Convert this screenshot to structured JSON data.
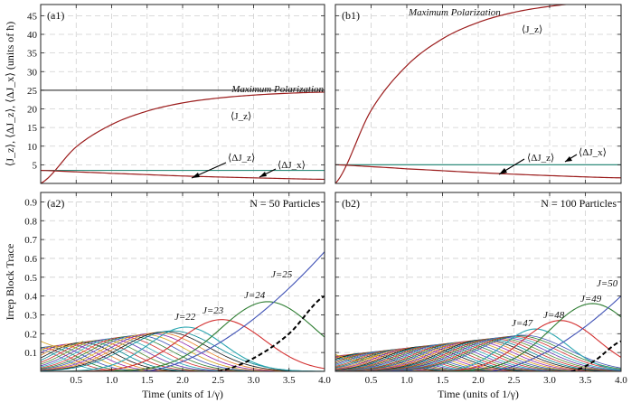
{
  "figure": {
    "ylabel_top": "⟨J_z⟩, ⟨ΔJ_z⟩, ⟨ΔJ_x⟩ (units of ħ)",
    "ylabel_bottom": "Irrep Block Trace",
    "xlabel": "Time (units of 1/γ)"
  },
  "chart_data": [
    {
      "panel": "(a1)",
      "type": "line",
      "xlim": [
        0,
        4.0
      ],
      "ylim": [
        0,
        48
      ],
      "xticks": [
        0.5,
        1.0,
        1.5,
        2.0,
        2.5,
        3.0,
        3.5,
        4.0
      ],
      "yticks": [
        5,
        10,
        15,
        20,
        25,
        30,
        35,
        40,
        45
      ],
      "grid": true,
      "series": [
        {
          "name": "Maximum Polarization",
          "color": "#444444",
          "x": [
            0,
            4.0
          ],
          "y": [
            25,
            25
          ]
        },
        {
          "name": "⟨J_z⟩",
          "color": "#9b1c1c",
          "x": [
            0,
            0.5,
            1.0,
            1.5,
            2.0,
            2.5,
            3.0,
            3.5,
            4.0
          ],
          "y": [
            0,
            9.8,
            15.8,
            19.4,
            21.6,
            22.9,
            23.7,
            24.2,
            24.5
          ]
        },
        {
          "name": "⟨ΔJ_x⟩",
          "color": "#2e8b7a",
          "x": [
            0,
            4.0
          ],
          "y": [
            3.5,
            3.5
          ]
        },
        {
          "name": "⟨ΔJ_z⟩",
          "color": "#9b1c1c",
          "x": [
            0,
            0.5,
            1.0,
            2.0,
            3.0,
            4.0
          ],
          "y": [
            3.5,
            3.1,
            2.7,
            2.0,
            1.5,
            1.1
          ]
        }
      ],
      "annotations": [
        "Maximum Polarization",
        "⟨J_z⟩",
        "⟨ΔJ_z⟩",
        "⟨ΔJ_x⟩"
      ]
    },
    {
      "panel": "(b1)",
      "type": "line",
      "xlim": [
        0,
        4.0
      ],
      "ylim": [
        0,
        48
      ],
      "xticks": [
        0.5,
        1.0,
        1.5,
        2.0,
        2.5,
        3.0,
        3.5,
        4.0
      ],
      "yticks": [
        5,
        10,
        15,
        20,
        25,
        30,
        35,
        40,
        45
      ],
      "grid": true,
      "series": [
        {
          "name": "⟨J_z⟩",
          "color": "#9b1c1c",
          "x": [
            0,
            0.5,
            1.0,
            1.5,
            2.0,
            2.5,
            3.0,
            3.5,
            4.0
          ],
          "y": [
            0,
            19.6,
            31.6,
            38.8,
            43.2,
            45.9,
            47.5,
            48.5,
            49.1
          ]
        },
        {
          "name": "⟨ΔJ_x⟩",
          "color": "#2e8b7a",
          "x": [
            0,
            4.0
          ],
          "y": [
            5,
            5
          ]
        },
        {
          "name": "⟨ΔJ_z⟩",
          "color": "#9b1c1c",
          "x": [
            0,
            0.5,
            1.0,
            2.0,
            3.0,
            4.0
          ],
          "y": [
            5,
            4.5,
            3.9,
            2.9,
            2.1,
            1.5
          ]
        }
      ],
      "annotations": [
        "Maximum Polarization",
        "⟨J_z⟩",
        "⟨ΔJ_z⟩",
        "⟨ΔJ_x⟩"
      ]
    },
    {
      "panel": "(a2)",
      "type": "line",
      "title": "N = 50 Particles",
      "xlim": [
        0,
        4.0
      ],
      "ylim": [
        0,
        0.95
      ],
      "xticks": [
        0.5,
        1.0,
        1.5,
        2.0,
        2.5,
        3.0,
        3.5,
        4.0
      ],
      "yticks": [
        0.1,
        0.2,
        0.3,
        0.4,
        0.5,
        0.6,
        0.7,
        0.8,
        0.9
      ],
      "grid": true,
      "n_particles": 50,
      "family_count": 21,
      "labeled_curves": [
        {
          "label": "J=22",
          "J": 22,
          "peak_x": 2.05,
          "peak_y": 0.235,
          "color": "#2ba6b0"
        },
        {
          "label": "J=23",
          "J": 23,
          "peak_x": 2.55,
          "peak_y": 0.275,
          "color": "#d32f2f"
        },
        {
          "label": "J=24",
          "J": 24,
          "peak_x": 3.2,
          "peak_y": 0.37,
          "color": "#2e7d32"
        },
        {
          "label": "J=25",
          "J": 25,
          "end_y": 0.635,
          "color": "#3f51b5"
        }
      ],
      "dashed_curve": {
        "name": "dashed",
        "x": [
          2.5,
          3.0,
          3.5,
          4.0
        ],
        "y": [
          0.0,
          0.07,
          0.2,
          0.4
        ]
      }
    },
    {
      "panel": "(b2)",
      "type": "line",
      "title": "N = 100 Particles",
      "xlim": [
        0,
        4.0
      ],
      "ylim": [
        0,
        0.95
      ],
      "xticks": [
        0.5,
        1.0,
        1.5,
        2.0,
        2.5,
        3.0,
        3.5,
        4.0
      ],
      "yticks": [
        0.1,
        0.2,
        0.3,
        0.4,
        0.5,
        0.6,
        0.7,
        0.8,
        0.9
      ],
      "grid": true,
      "n_particles": 100,
      "family_count": 40,
      "labeled_curves": [
        {
          "label": "J=47",
          "J": 47,
          "peak_x": 2.8,
          "peak_y": 0.225,
          "color": "#2ba6b0"
        },
        {
          "label": "J=48",
          "J": 48,
          "peak_x": 3.15,
          "peak_y": 0.27,
          "color": "#d32f2f"
        },
        {
          "label": "J=49",
          "J": 49,
          "peak_x": 3.6,
          "peak_y": 0.36,
          "color": "#2e7d32"
        },
        {
          "label": "J=50",
          "J": 50,
          "end_y": 0.4,
          "color": "#3f51b5"
        }
      ],
      "dashed_curve": {
        "name": "dashed",
        "x": [
          3.3,
          3.6,
          4.0
        ],
        "y": [
          0.0,
          0.05,
          0.16
        ]
      }
    }
  ]
}
